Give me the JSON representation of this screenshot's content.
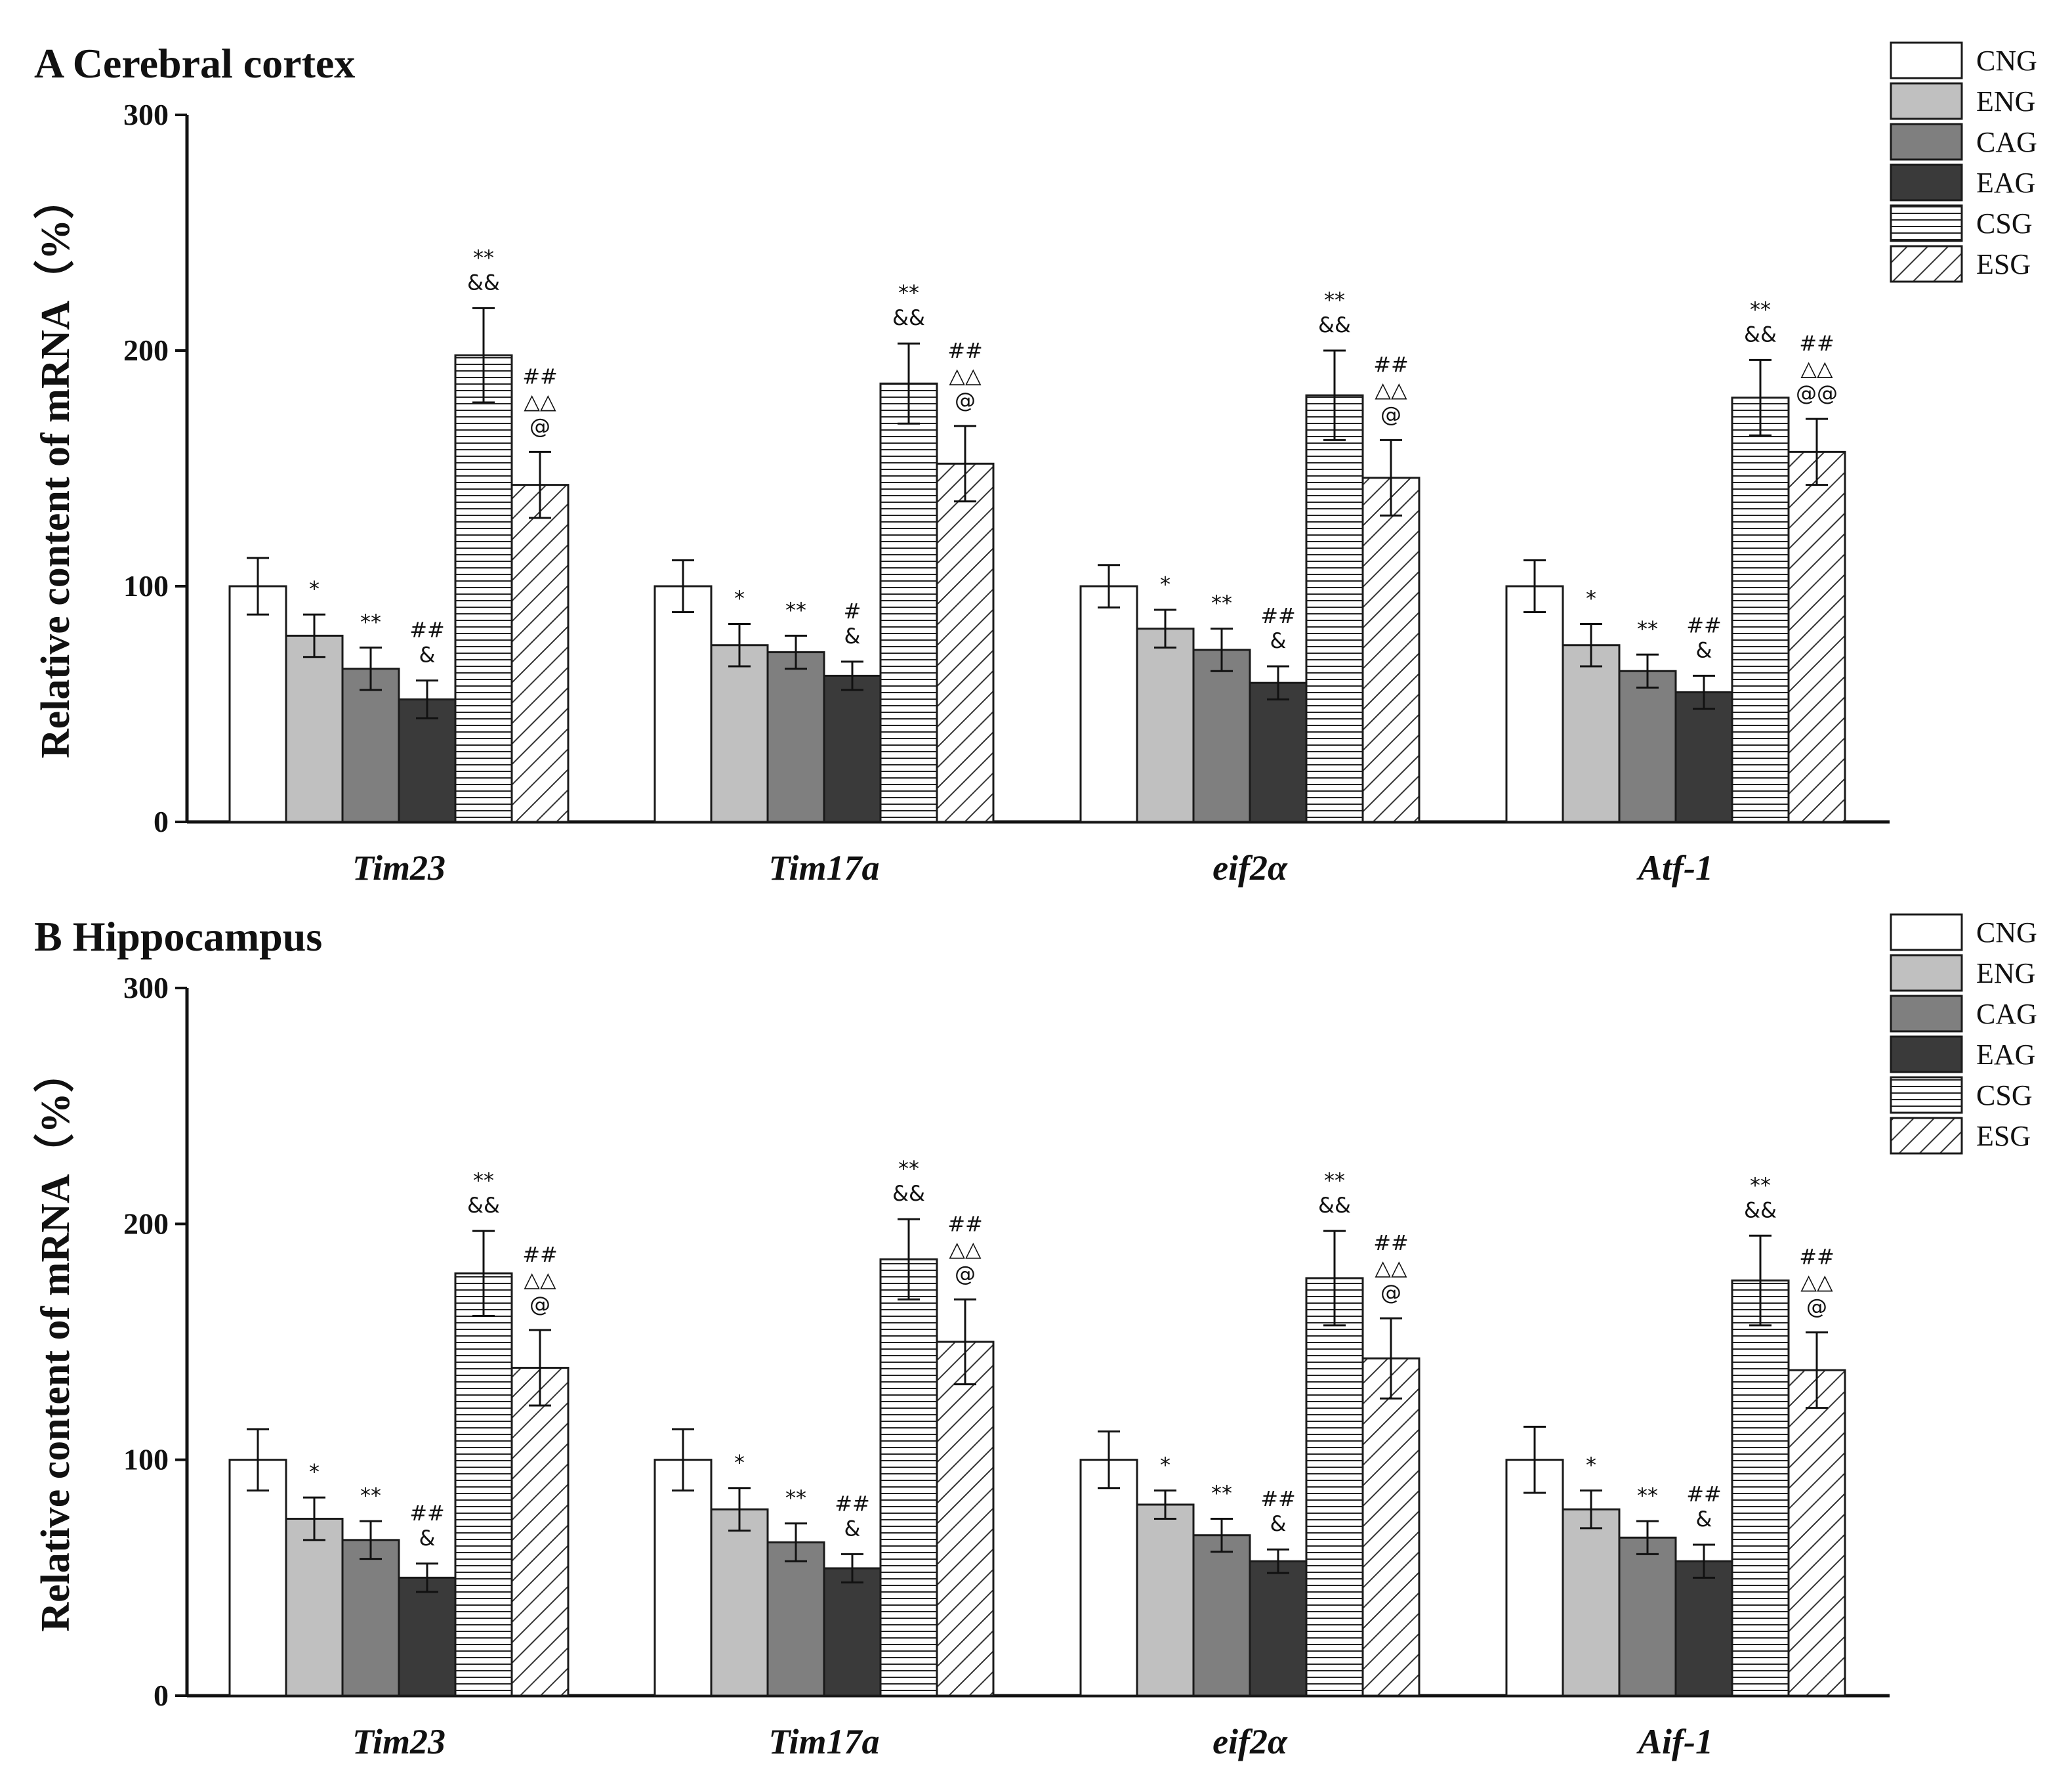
{
  "colors": {
    "CNG": "#ffffff",
    "ENG": "#c0c0c0",
    "CAG": "#7f7f7f",
    "EAG": "#3a3a3a",
    "stroke": "#1a1a1a"
  },
  "legend": [
    "CNG",
    "ENG",
    "CAG",
    "EAG",
    "CSG",
    "ESG"
  ],
  "chart_data": [
    {
      "type": "bar",
      "title": "A Cerebral cortex",
      "ylabel": "Relative content of mRNA（%）",
      "ylim": [
        0,
        300
      ],
      "yticks": [
        0,
        100,
        200,
        300
      ],
      "categories": [
        "Tim23",
        "Tim17a",
        "eif2α",
        "Atf-1"
      ],
      "series": [
        {
          "name": "CNG",
          "values": [
            100,
            100,
            100,
            100
          ],
          "errors": [
            12,
            11,
            9,
            11
          ]
        },
        {
          "name": "ENG",
          "values": [
            79,
            75,
            82,
            75
          ],
          "errors": [
            9,
            9,
            8,
            9
          ]
        },
        {
          "name": "CAG",
          "values": [
            65,
            72,
            73,
            64
          ],
          "errors": [
            9,
            7,
            9,
            7
          ]
        },
        {
          "name": "EAG",
          "values": [
            52,
            62,
            59,
            55
          ],
          "errors": [
            8,
            6,
            7,
            7
          ]
        },
        {
          "name": "CSG",
          "values": [
            198,
            186,
            181,
            180
          ],
          "errors": [
            20,
            17,
            19,
            16
          ]
        },
        {
          "name": "ESG",
          "values": [
            143,
            152,
            146,
            157
          ],
          "errors": [
            14,
            16,
            16,
            14
          ]
        }
      ],
      "annotations": [
        [
          "",
          "*",
          "**",
          "##|&",
          "**|&&",
          "##|△△|@"
        ],
        [
          "",
          "*",
          "**",
          "#|&",
          "**|&&",
          "##|△△|@"
        ],
        [
          "",
          "*",
          "**",
          "##|&",
          "**|&&",
          "##|△△|@"
        ],
        [
          "",
          "*",
          "**",
          "##|&",
          "**|&&",
          "##|△△|@@"
        ]
      ]
    },
    {
      "type": "bar",
      "title": "B  Hippocampus",
      "ylabel": "Relative content of mRNA（%）",
      "ylim": [
        0,
        300
      ],
      "yticks": [
        0,
        100,
        200,
        300
      ],
      "categories": [
        "Tim23",
        "Tim17a",
        "eif2α",
        "Aif-1"
      ],
      "series": [
        {
          "name": "CNG",
          "values": [
            100,
            100,
            100,
            100
          ],
          "errors": [
            13,
            13,
            12,
            14
          ]
        },
        {
          "name": "ENG",
          "values": [
            75,
            79,
            81,
            79
          ],
          "errors": [
            9,
            9,
            6,
            8
          ]
        },
        {
          "name": "CAG",
          "values": [
            66,
            65,
            68,
            67
          ],
          "errors": [
            8,
            8,
            7,
            7
          ]
        },
        {
          "name": "EAG",
          "values": [
            50,
            54,
            57,
            57
          ],
          "errors": [
            6,
            6,
            5,
            7
          ]
        },
        {
          "name": "CSG",
          "values": [
            179,
            185,
            177,
            176
          ],
          "errors": [
            18,
            17,
            20,
            19
          ]
        },
        {
          "name": "ESG",
          "values": [
            139,
            150,
            143,
            138
          ],
          "errors": [
            16,
            18,
            17,
            16
          ]
        }
      ],
      "annotations": [
        [
          "",
          "*",
          "**",
          "##|&",
          "**|&&",
          "##|△△|@"
        ],
        [
          "",
          "*",
          "**",
          "##|&",
          "**|&&",
          "##|△△|@"
        ],
        [
          "",
          "*",
          "**",
          "##|&",
          "**|&&",
          "##|△△|@"
        ],
        [
          "",
          "*",
          "**",
          "##|&",
          "**|&&",
          "##|△△|@"
        ]
      ]
    }
  ]
}
